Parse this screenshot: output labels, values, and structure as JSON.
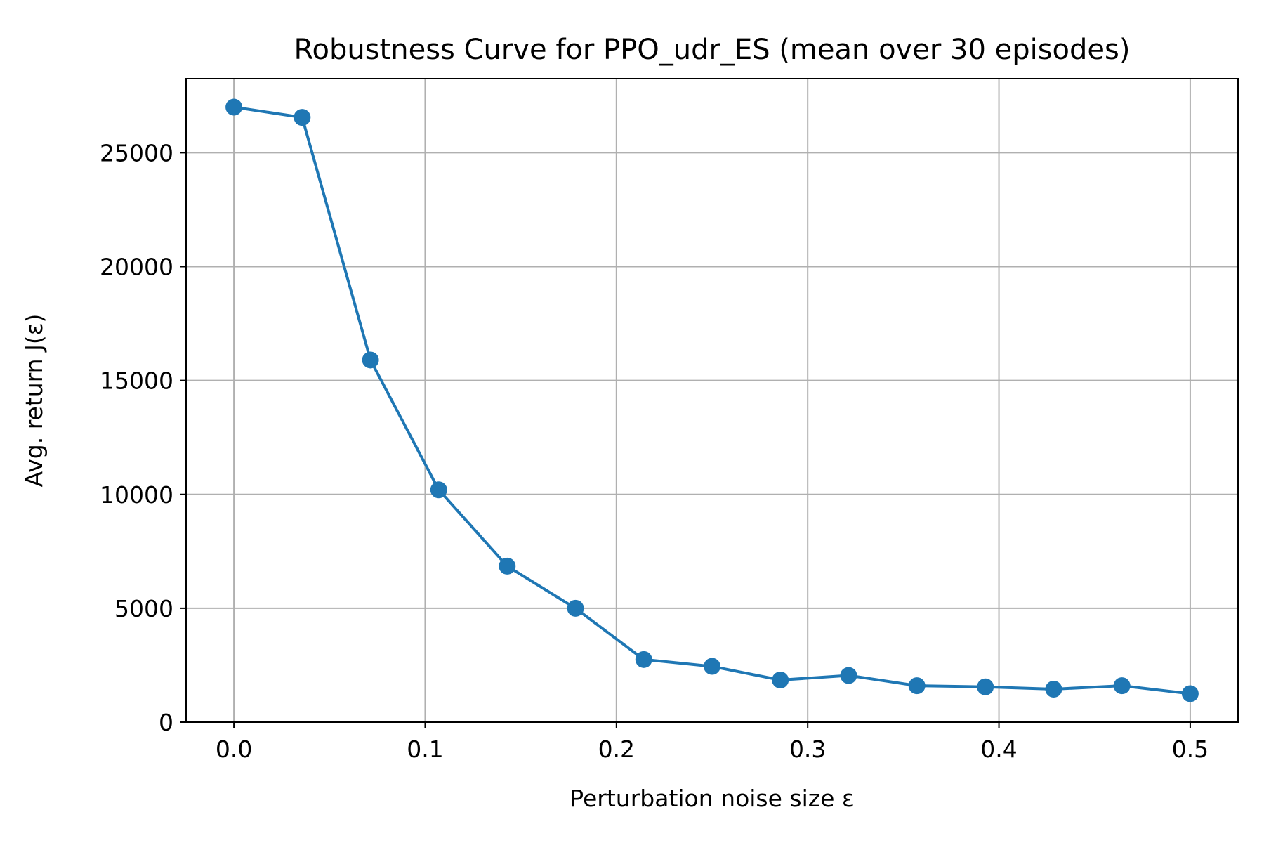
{
  "chart_data": {
    "type": "line",
    "title": "Robustness Curve for PPO_udr_ES (mean over 30 episodes)",
    "xlabel": "Perturbation noise size ε",
    "ylabel": "Avg. return J(ε)",
    "xlim": [
      -0.025,
      0.525
    ],
    "ylim": [
      0,
      28250
    ],
    "x_ticks": [
      0.0,
      0.1,
      0.2,
      0.3,
      0.4,
      0.5
    ],
    "x_tick_labels": [
      "0.0",
      "0.1",
      "0.2",
      "0.3",
      "0.4",
      "0.5"
    ],
    "y_ticks": [
      0,
      5000,
      10000,
      15000,
      20000,
      25000
    ],
    "y_tick_labels": [
      "0",
      "5000",
      "10000",
      "15000",
      "20000",
      "25000"
    ],
    "grid": true,
    "legend": "none",
    "series": [
      {
        "color": "#1f77b4",
        "marker": "circle",
        "x": [
          0.0,
          0.0357,
          0.0714,
          0.1071,
          0.1429,
          0.1786,
          0.2143,
          0.25,
          0.2857,
          0.3214,
          0.3571,
          0.3929,
          0.4286,
          0.4643,
          0.5
        ],
        "y": [
          27000,
          26550,
          15900,
          10200,
          6850,
          5000,
          2750,
          2450,
          1850,
          2050,
          1600,
          1550,
          1450,
          1600,
          1250
        ]
      }
    ]
  }
}
